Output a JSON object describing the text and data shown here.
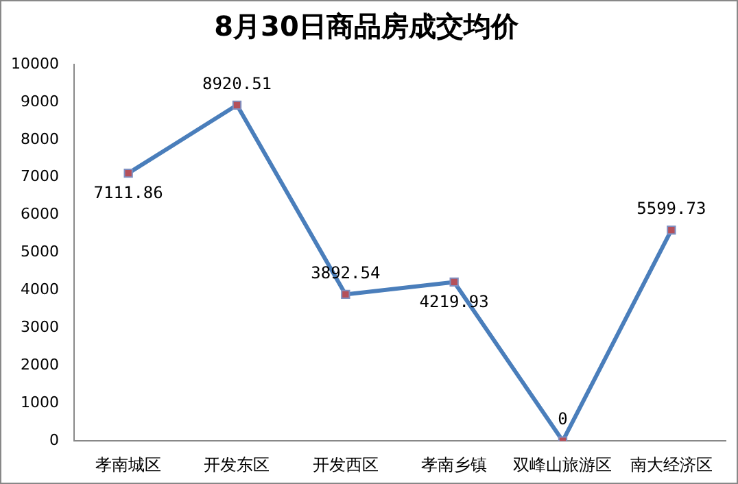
{
  "chart_data": {
    "type": "line",
    "title": "8月30日商品房成交均价",
    "categories": [
      "孝南城区",
      "开发东区",
      "开发西区",
      "孝南乡镇",
      "双峰山旅游区",
      "南大经济区"
    ],
    "series": [
      {
        "color": "#4a7ebb",
        "values": [
          7111.86,
          8920.51,
          3892.54,
          4219.93,
          0,
          5599.73
        ]
      }
    ],
    "ylim": [
      0,
      10000
    ],
    "yticks": [
      0,
      1000,
      2000,
      3000,
      4000,
      5000,
      6000,
      7000,
      8000,
      9000,
      10000
    ],
    "grid": false,
    "legend": false,
    "marker": "square",
    "line_style": "solid",
    "data_labels": true
  }
}
